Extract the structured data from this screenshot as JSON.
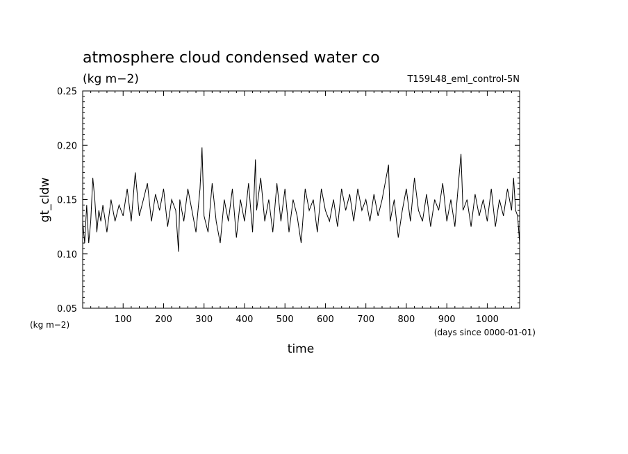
{
  "chart_data": {
    "type": "line",
    "title": "atmosphere cloud condensed water co",
    "subtitle": "(kg m−2)",
    "run_label": "T159L48_eml_control-5N",
    "xlabel": "time",
    "x_units": "(days since 0000-01-01)",
    "ylabel": "gt_cldw",
    "y_units": "(kg m−2)",
    "xlim": [
      0,
      1080
    ],
    "ylim": [
      0.05,
      0.25
    ],
    "x_ticks": [
      100,
      200,
      300,
      400,
      500,
      600,
      700,
      800,
      900,
      1000
    ],
    "x_tick_labels": [
      "100",
      "200",
      "300",
      "400",
      "500",
      "600",
      "700",
      "800",
      "900",
      "1000"
    ],
    "y_ticks": [
      0.05,
      0.1,
      0.15,
      0.2,
      0.25
    ],
    "y_tick_labels": [
      "0.05",
      "0.10",
      "0.15",
      "0.20",
      "0.25"
    ],
    "grid": false,
    "line_color": "#000000",
    "series": [
      {
        "x": [
          0,
          5,
          10,
          15,
          20,
          25,
          30,
          35,
          40,
          45,
          50,
          60,
          70,
          80,
          90,
          100,
          110,
          120,
          130,
          140,
          150,
          160,
          170,
          180,
          190,
          200,
          210,
          220,
          230,
          237,
          240,
          250,
          260,
          270,
          280,
          290,
          295,
          300,
          310,
          320,
          330,
          340,
          350,
          360,
          370,
          380,
          390,
          400,
          410,
          420,
          427,
          430,
          440,
          450,
          460,
          470,
          480,
          490,
          500,
          510,
          520,
          530,
          540,
          550,
          560,
          570,
          580,
          590,
          600,
          610,
          620,
          630,
          640,
          650,
          660,
          670,
          680,
          690,
          700,
          710,
          720,
          730,
          740,
          750,
          756,
          760,
          770,
          780,
          790,
          800,
          810,
          820,
          830,
          840,
          850,
          860,
          870,
          880,
          890,
          900,
          910,
          920,
          930,
          935,
          940,
          950,
          960,
          970,
          980,
          990,
          1000,
          1010,
          1020,
          1030,
          1040,
          1050,
          1060,
          1065,
          1070,
          1075,
          1080
        ],
        "y": [
          0.13,
          0.11,
          0.145,
          0.11,
          0.13,
          0.17,
          0.15,
          0.12,
          0.14,
          0.13,
          0.145,
          0.12,
          0.15,
          0.13,
          0.145,
          0.135,
          0.16,
          0.13,
          0.175,
          0.135,
          0.15,
          0.165,
          0.13,
          0.155,
          0.14,
          0.16,
          0.125,
          0.15,
          0.14,
          0.102,
          0.15,
          0.13,
          0.16,
          0.14,
          0.12,
          0.16,
          0.198,
          0.135,
          0.12,
          0.165,
          0.13,
          0.11,
          0.15,
          0.13,
          0.16,
          0.115,
          0.15,
          0.13,
          0.165,
          0.12,
          0.187,
          0.14,
          0.17,
          0.13,
          0.15,
          0.12,
          0.165,
          0.13,
          0.16,
          0.12,
          0.15,
          0.135,
          0.11,
          0.16,
          0.14,
          0.15,
          0.12,
          0.16,
          0.14,
          0.13,
          0.15,
          0.125,
          0.16,
          0.14,
          0.155,
          0.13,
          0.16,
          0.14,
          0.15,
          0.13,
          0.155,
          0.135,
          0.15,
          0.17,
          0.182,
          0.13,
          0.15,
          0.115,
          0.14,
          0.16,
          0.13,
          0.17,
          0.14,
          0.13,
          0.155,
          0.125,
          0.15,
          0.14,
          0.165,
          0.13,
          0.15,
          0.125,
          0.17,
          0.192,
          0.14,
          0.15,
          0.125,
          0.155,
          0.135,
          0.15,
          0.13,
          0.16,
          0.125,
          0.15,
          0.135,
          0.16,
          0.14,
          0.17,
          0.14,
          0.135,
          0.11
        ]
      }
    ]
  }
}
